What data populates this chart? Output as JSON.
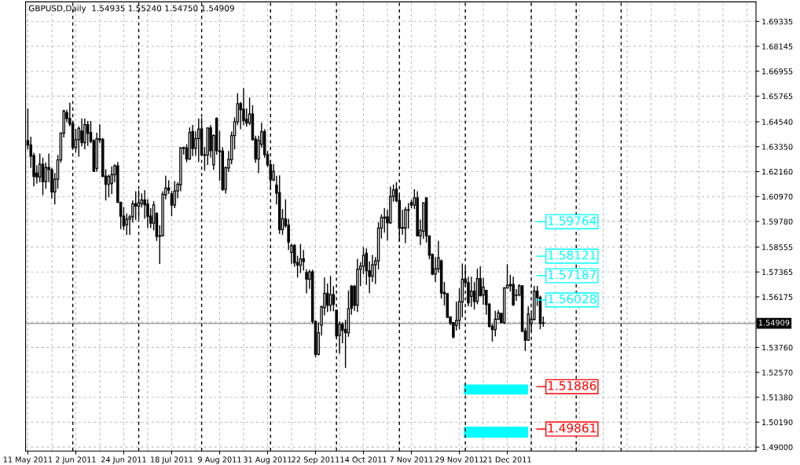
{
  "chart_data": {
    "type": "candlestick",
    "title": "GBPUSD,Daily  1.54935 1.55240 1.54750 1.54909",
    "categories": [
      "11 May 2011",
      null,
      null,
      null,
      null,
      null,
      null,
      null,
      null,
      null,
      null,
      null,
      null,
      null,
      null,
      null,
      "2 Jun 2011",
      null,
      null,
      null,
      null,
      null,
      null,
      null,
      null,
      null,
      null,
      null,
      null,
      null,
      null,
      null,
      "24 Jun 2011",
      null,
      null,
      null,
      null,
      null,
      null,
      null,
      null,
      null,
      null,
      null,
      null,
      null,
      null,
      null,
      "18 Jul 2011",
      null,
      null,
      null,
      null,
      null,
      null,
      null,
      null,
      null,
      null,
      null,
      null,
      null,
      null,
      null,
      "9 Aug 2011",
      null,
      null,
      null,
      null,
      null,
      null,
      null,
      null,
      null,
      null,
      null,
      null,
      null,
      null,
      null,
      "31 Aug 2011",
      null,
      null,
      null,
      null,
      null,
      null,
      null,
      null,
      null,
      null,
      null,
      null,
      null,
      null,
      null,
      "22 Sep 2011",
      null,
      null,
      null,
      null,
      null,
      null,
      null,
      null,
      null,
      null,
      null,
      null,
      null,
      null,
      null,
      "14 Oct 2011",
      null,
      null,
      null,
      null,
      null,
      null,
      null,
      null,
      null,
      null,
      null,
      null,
      null,
      null,
      null,
      "7 Nov 2011",
      null,
      null,
      null,
      null,
      null,
      null,
      null,
      null,
      null,
      null,
      null,
      null,
      null,
      null,
      null,
      "29 Nov 2011",
      null,
      null,
      null,
      null,
      null,
      null,
      null,
      null,
      null,
      null,
      null,
      null,
      null,
      null,
      null,
      "21 Dec 2011",
      null,
      null,
      null,
      null,
      null,
      null,
      null,
      null,
      null,
      null,
      null,
      null,
      null,
      null,
      null,
      null,
      null,
      null,
      null,
      null,
      null,
      null,
      null,
      null,
      null,
      null,
      null,
      null,
      null,
      null,
      null,
      null,
      null,
      null,
      null,
      null,
      null,
      null,
      null,
      null,
      null,
      null,
      null,
      null,
      null,
      null,
      null,
      null,
      null,
      null,
      null,
      null,
      null,
      null,
      null,
      null,
      null,
      null,
      null,
      null,
      null,
      null,
      null,
      null,
      null,
      null,
      null,
      null,
      null,
      null,
      null,
      null,
      null,
      null,
      null,
      null,
      null,
      null,
      null,
      null,
      null,
      null,
      null
    ],
    "ohlc": [
      [
        1.6364,
        1.6517,
        1.6321,
        1.6343
      ],
      [
        1.6343,
        1.6383,
        1.6234,
        1.629
      ],
      [
        1.6292,
        1.6306,
        1.6146,
        1.6193
      ],
      [
        1.6209,
        1.6246,
        1.6159,
        1.619
      ],
      [
        1.619,
        1.6302,
        1.6165,
        1.6251
      ],
      [
        1.6251,
        1.6283,
        1.6103,
        1.6168
      ],
      [
        1.6168,
        1.6259,
        1.6134,
        1.6236
      ],
      [
        1.6236,
        1.6302,
        1.6165,
        1.6227
      ],
      [
        1.6225,
        1.6234,
        1.6088,
        1.6119
      ],
      [
        1.6119,
        1.6209,
        1.6059,
        1.618
      ],
      [
        1.618,
        1.6296,
        1.6134,
        1.6272
      ],
      [
        1.6272,
        1.6402,
        1.6259,
        1.64
      ],
      [
        1.64,
        1.6511,
        1.6379,
        1.6505
      ],
      [
        1.6498,
        1.6511,
        1.6451,
        1.647
      ],
      [
        1.647,
        1.6545,
        1.6433,
        1.6443
      ],
      [
        1.6445,
        1.6458,
        1.6327,
        1.6331
      ],
      [
        1.6331,
        1.642,
        1.6306,
        1.6368
      ],
      [
        1.6368,
        1.6433,
        1.6287,
        1.6423
      ],
      [
        1.641,
        1.647,
        1.6336,
        1.6354
      ],
      [
        1.6354,
        1.647,
        1.6323,
        1.6441
      ],
      [
        1.6441,
        1.6458,
        1.6339,
        1.6398
      ],
      [
        1.6403,
        1.6458,
        1.6352,
        1.6361
      ],
      [
        1.6364,
        1.6371,
        1.6215,
        1.6217
      ],
      [
        1.6231,
        1.6402,
        1.6215,
        1.6373
      ],
      [
        1.6373,
        1.6441,
        1.6352,
        1.6367
      ],
      [
        1.6369,
        1.6377,
        1.619,
        1.6193
      ],
      [
        1.6195,
        1.6227,
        1.6078,
        1.6155
      ],
      [
        1.6155,
        1.6202,
        1.6093,
        1.6193
      ],
      [
        1.6159,
        1.624,
        1.6109,
        1.6201
      ],
      [
        1.6201,
        1.6252,
        1.6165,
        1.6244
      ],
      [
        1.6244,
        1.6262,
        1.6067,
        1.6069
      ],
      [
        1.6069,
        1.6072,
        1.5941,
        1.6003
      ],
      [
        1.6003,
        1.6047,
        1.5937,
        1.5957
      ],
      [
        1.5962,
        1.6016,
        1.5914,
        1.5988
      ],
      [
        1.5988,
        1.601,
        1.5914,
        1.6
      ],
      [
        1.6,
        1.6078,
        1.5972,
        1.6063
      ],
      [
        1.6063,
        1.6122,
        1.5985,
        1.6051
      ],
      [
        1.6051,
        1.6128,
        1.5991,
        1.6067
      ],
      [
        1.6063,
        1.6112,
        1.6044,
        1.608
      ],
      [
        1.608,
        1.6128,
        1.5991,
        1.6057
      ],
      [
        1.6061,
        1.6084,
        1.5947,
        1.6002
      ],
      [
        1.6003,
        1.6041,
        1.5947,
        1.597
      ],
      [
        1.597,
        1.6074,
        1.5935,
        1.6057
      ],
      [
        1.6016,
        1.6022,
        1.5885,
        1.5907
      ],
      [
        1.591,
        1.596,
        1.5775,
        1.5907
      ],
      [
        1.591,
        1.6122,
        1.5906,
        1.6108
      ],
      [
        1.6105,
        1.6196,
        1.6084,
        1.6138
      ],
      [
        1.6138,
        1.6175,
        1.6109,
        1.6128
      ],
      [
        1.6109,
        1.6124,
        1.6003,
        1.6056
      ],
      [
        1.6056,
        1.6171,
        1.6041,
        1.6124
      ],
      [
        1.6124,
        1.6165,
        1.6088,
        1.6155
      ],
      [
        1.6153,
        1.6333,
        1.6122,
        1.6329
      ],
      [
        1.6331,
        1.6333,
        1.6298,
        1.6327
      ],
      [
        1.6329,
        1.6346,
        1.6261,
        1.6276
      ],
      [
        1.6276,
        1.6427,
        1.6271,
        1.6403
      ],
      [
        1.6408,
        1.6439,
        1.629,
        1.6327
      ],
      [
        1.6327,
        1.6408,
        1.6293,
        1.6374
      ],
      [
        1.6374,
        1.647,
        1.6262,
        1.6419
      ],
      [
        1.642,
        1.6473,
        1.6293,
        1.6296
      ],
      [
        1.6296,
        1.6333,
        1.6221,
        1.6293
      ],
      [
        1.6295,
        1.6425,
        1.6248,
        1.6425
      ],
      [
        1.6425,
        1.6438,
        1.6283,
        1.6316
      ],
      [
        1.6248,
        1.6394,
        1.6224,
        1.6388
      ],
      [
        1.6471,
        1.6475,
        1.6297,
        1.6316
      ],
      [
        1.6316,
        1.641,
        1.6173,
        1.6311
      ],
      [
        1.6314,
        1.6332,
        1.6124,
        1.6131
      ],
      [
        1.6131,
        1.6239,
        1.6111,
        1.6235
      ],
      [
        1.6233,
        1.6314,
        1.6214,
        1.6275
      ],
      [
        1.6273,
        1.6407,
        1.6252,
        1.6388
      ],
      [
        1.6388,
        1.6475,
        1.6322,
        1.6454
      ],
      [
        1.6454,
        1.659,
        1.6438,
        1.6541
      ],
      [
        1.6541,
        1.6549,
        1.6419,
        1.6512
      ],
      [
        1.6514,
        1.6615,
        1.6438,
        1.6459
      ],
      [
        1.6466,
        1.6518,
        1.6431,
        1.6448
      ],
      [
        1.6448,
        1.657,
        1.6438,
        1.6491
      ],
      [
        1.6491,
        1.6533,
        1.6363,
        1.6369
      ],
      [
        1.6372,
        1.6388,
        1.6258,
        1.6276
      ],
      [
        1.6276,
        1.6388,
        1.6208,
        1.6366
      ],
      [
        1.6347,
        1.645,
        1.633,
        1.6407
      ],
      [
        1.6407,
        1.6419,
        1.6283,
        1.6297
      ],
      [
        1.6297,
        1.6314,
        1.6239,
        1.6248
      ],
      [
        1.6249,
        1.627,
        1.6128,
        1.6177
      ],
      [
        1.6177,
        1.6252,
        1.6169,
        1.6217
      ],
      [
        1.6152,
        1.6196,
        1.6059,
        1.6113
      ],
      [
        1.6115,
        1.6198,
        1.5919,
        1.5939
      ],
      [
        1.5939,
        1.6037,
        1.5914,
        1.5991
      ],
      [
        1.599,
        1.6084,
        1.5948,
        1.5958
      ],
      [
        1.596,
        1.5991,
        1.5842,
        1.588
      ],
      [
        1.583,
        1.5873,
        1.5774,
        1.5863
      ],
      [
        1.5863,
        1.5871,
        1.5762,
        1.578
      ],
      [
        1.5782,
        1.5814,
        1.571,
        1.5769
      ],
      [
        1.5769,
        1.587,
        1.5731,
        1.5799
      ],
      [
        1.5799,
        1.5842,
        1.5743,
        1.5787
      ],
      [
        1.5733,
        1.5749,
        1.5634,
        1.5702
      ],
      [
        1.5702,
        1.5747,
        1.5656,
        1.5737
      ],
      [
        1.5737,
        1.5747,
        1.5489,
        1.5501
      ],
      [
        1.5501,
        1.5504,
        1.5328,
        1.5343
      ],
      [
        1.5343,
        1.5495,
        1.5338,
        1.5446
      ],
      [
        1.5483,
        1.5576,
        1.5433,
        1.557
      ],
      [
        1.5566,
        1.571,
        1.5529,
        1.5635
      ],
      [
        1.5635,
        1.5681,
        1.5545,
        1.5578
      ],
      [
        1.5578,
        1.5718,
        1.5549,
        1.5628
      ],
      [
        1.5628,
        1.5669,
        1.5549,
        1.5582
      ],
      [
        1.5554,
        1.5554,
        1.5421,
        1.5431
      ],
      [
        1.5433,
        1.5501,
        1.5346,
        1.5487
      ],
      [
        1.5487,
        1.5495,
        1.5396,
        1.5458
      ],
      [
        1.5462,
        1.5508,
        1.5278,
        1.5446
      ],
      [
        1.5446,
        1.5648,
        1.5427,
        1.5561
      ],
      [
        1.5669,
        1.5675,
        1.5532,
        1.5563
      ],
      [
        1.5669,
        1.5675,
        1.5551,
        1.5578
      ],
      [
        1.5578,
        1.5799,
        1.5545,
        1.5749
      ],
      [
        1.5749,
        1.5784,
        1.5669,
        1.5764
      ],
      [
        1.5764,
        1.5855,
        1.5725,
        1.5816
      ],
      [
        1.5826,
        1.5849,
        1.5675,
        1.5743
      ],
      [
        1.5743,
        1.5787,
        1.5635,
        1.5715
      ],
      [
        1.5715,
        1.5818,
        1.5689,
        1.5771
      ],
      [
        1.5771,
        1.5808,
        1.5679,
        1.579
      ],
      [
        1.579,
        1.5974,
        1.5748,
        1.5946
      ],
      [
        1.5946,
        1.6012,
        1.5896,
        1.5997
      ],
      [
        1.5999,
        1.6041,
        1.5924,
        1.5994
      ],
      [
        1.6,
        1.6034,
        1.5887,
        1.5972
      ],
      [
        1.5972,
        1.6145,
        1.5965,
        1.6097
      ],
      [
        1.6097,
        1.6154,
        1.6072,
        1.6128
      ],
      [
        1.6132,
        1.6166,
        1.6069,
        1.6078
      ],
      [
        1.6078,
        1.6103,
        1.5881,
        1.5946
      ],
      [
        1.5949,
        1.6034,
        1.5915,
        1.5946
      ],
      [
        1.5946,
        1.6047,
        1.5874,
        1.6034
      ],
      [
        1.6034,
        1.6066,
        1.5944,
        1.6032
      ],
      [
        1.6068,
        1.6082,
        1.6041,
        1.6056
      ],
      [
        1.6056,
        1.6132,
        1.6037,
        1.6091
      ],
      [
        1.6091,
        1.6122,
        1.5906,
        1.5909
      ],
      [
        1.5909,
        1.5987,
        1.5865,
        1.5936
      ],
      [
        1.5931,
        1.6069,
        1.5894,
        1.6066
      ],
      [
        1.6091,
        1.6091,
        1.5877,
        1.5909
      ],
      [
        1.5909,
        1.5909,
        1.5798,
        1.5817
      ],
      [
        1.5821,
        1.5823,
        1.5721,
        1.5727
      ],
      [
        1.5727,
        1.5808,
        1.5689,
        1.5752
      ],
      [
        1.5751,
        1.5886,
        1.5733,
        1.5805
      ],
      [
        1.579,
        1.5796,
        1.561,
        1.5636
      ],
      [
        1.5639,
        1.5689,
        1.5576,
        1.5633
      ],
      [
        1.5633,
        1.5635,
        1.5517,
        1.552
      ],
      [
        1.5522,
        1.5522,
        1.5482,
        1.5492
      ],
      [
        1.5495,
        1.5497,
        1.5419,
        1.5426
      ],
      [
        1.5482,
        1.5595,
        1.5457,
        1.5505
      ],
      [
        1.5505,
        1.5658,
        1.5463,
        1.5595
      ],
      [
        1.5593,
        1.5777,
        1.552,
        1.5702
      ],
      [
        1.5702,
        1.5758,
        1.567,
        1.5685
      ],
      [
        1.5685,
        1.5714,
        1.5572,
        1.5589
      ],
      [
        1.562,
        1.5714,
        1.557,
        1.5645
      ],
      [
        1.5645,
        1.5689,
        1.5557,
        1.5595
      ],
      [
        1.5595,
        1.5752,
        1.5582,
        1.5705
      ],
      [
        1.5705,
        1.5764,
        1.562,
        1.5623
      ],
      [
        1.5626,
        1.5708,
        1.558,
        1.5664
      ],
      [
        1.5649,
        1.5651,
        1.5532,
        1.558
      ],
      [
        1.5582,
        1.5589,
        1.5472,
        1.5476
      ],
      [
        1.5477,
        1.5488,
        1.5404,
        1.5461
      ],
      [
        1.5461,
        1.5551,
        1.5429,
        1.5511
      ],
      [
        1.5511,
        1.5555,
        1.5507,
        1.5541
      ],
      [
        1.5539,
        1.5539,
        1.5492,
        1.5495
      ],
      [
        1.5495,
        1.5664,
        1.5488,
        1.566
      ],
      [
        1.566,
        1.5774,
        1.5658,
        1.5673
      ],
      [
        1.5677,
        1.5723,
        1.5643,
        1.567
      ],
      [
        1.5677,
        1.5714,
        1.5574,
        1.5579
      ],
      [
        1.5626,
        1.5655,
        1.5599,
        1.5625
      ],
      [
        1.5626,
        1.5677,
        1.5623,
        1.567
      ],
      [
        1.567,
        1.5673,
        1.5451,
        1.5453
      ],
      [
        1.5455,
        1.547,
        1.5359,
        1.5411
      ],
      [
        1.5411,
        1.5572,
        1.5407,
        1.5536
      ],
      [
        1.5491,
        1.5539,
        1.5451,
        1.551
      ],
      [
        1.551,
        1.567,
        1.5505,
        1.5645
      ],
      [
        1.5645,
        1.567,
        1.5574,
        1.5614
      ],
      [
        1.5614,
        1.5623,
        1.5463,
        1.5491
      ],
      [
        1.54935,
        1.5524,
        1.5475,
        1.54909
      ],
      null,
      null,
      null,
      null,
      null,
      null,
      null,
      null,
      null,
      null,
      null,
      null,
      null,
      null,
      null,
      null,
      null,
      null,
      null,
      null,
      null,
      null,
      null,
      null,
      null,
      null,
      null,
      null,
      null,
      null,
      null,
      null,
      null,
      null,
      null,
      null,
      null,
      null,
      null,
      null,
      null,
      null,
      null,
      null,
      null,
      null,
      null,
      null,
      null,
      null,
      null,
      null,
      null,
      null,
      null,
      null,
      null,
      null,
      null,
      null,
      null,
      null,
      null,
      null,
      null,
      null,
      null,
      null,
      null,
      null,
      null
    ],
    "color": "#000000",
    "ylim": [
      1.4881,
      1.7027
    ],
    "yticks": [
      {
        "value": 1.49,
        "label": "1.49000"
      },
      {
        "value": 1.5019,
        "label": "1.50190"
      },
      {
        "value": 1.5138,
        "label": "1.51380"
      },
      {
        "value": 1.5257,
        "label": "1.52570"
      },
      {
        "value": 1.5376,
        "label": "1.53760"
      },
      {
        "value": 1.5497,
        "label": null
      },
      {
        "value": 1.56175,
        "label": "1.56175"
      },
      {
        "value": 1.57365,
        "label": "1.57365"
      },
      {
        "value": 1.58555,
        "label": "1.58555"
      },
      {
        "value": 1.5978,
        "label": "1.59780"
      },
      {
        "value": 1.6097,
        "label": "1.60970"
      },
      {
        "value": 1.6216,
        "label": "1.62160"
      },
      {
        "value": 1.6335,
        "label": "1.63350"
      },
      {
        "value": 1.6454,
        "label": "1.64540"
      },
      {
        "value": 1.65765,
        "label": "1.65765"
      },
      {
        "value": 1.66955,
        "label": "1.66955"
      },
      {
        "value": 1.68145,
        "label": "1.68145"
      },
      {
        "value": 1.69335,
        "label": "1.69335"
      }
    ],
    "grid": true,
    "ref_lines": [
      {
        "axis": "y",
        "value": 1.54909,
        "label": "1.54909"
      },
      {
        "axis": "y",
        "value": 1.59764,
        "label": "1.59764",
        "color": "#00ffff"
      },
      {
        "axis": "y",
        "value": 1.58121,
        "label": "1.58121",
        "color": "#00ffff"
      },
      {
        "axis": "y",
        "value": 1.57187,
        "label": "1.57187",
        "color": "#00ffff"
      },
      {
        "axis": "y",
        "value": 1.56028,
        "label": "1.56028",
        "color": "#00ffff"
      },
      {
        "axis": "y",
        "value": 1.51886,
        "label": "1.51886",
        "color": "#ff0000"
      },
      {
        "axis": "y",
        "value": 1.49861,
        "label": "1.49861",
        "color": "#ff0000"
      }
    ],
    "bands": [
      {
        "axis": "y",
        "from": 1.5151,
        "to": 1.5199,
        "color": "#00ffff"
      },
      {
        "axis": "y",
        "from": 1.4945,
        "to": 1.4997,
        "color": "#00ffff"
      }
    ]
  }
}
